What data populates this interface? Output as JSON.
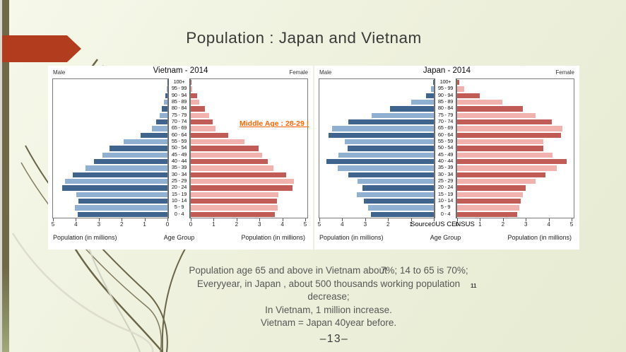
{
  "slide": {
    "title": "Population : Japan and Vietnam",
    "body": {
      "line1_part1": "Population age 65 and above in Vietnam about",
      "line1_part2": "7%; 14 to 65 is 70%;",
      "line2": "Everyyear, in Japan , about 500 thousands working population",
      "line2_superscript": "11",
      "line3": "decrease;",
      "line4": "In Vietnam, 1 million increase.",
      "line5": "Vietnam = Japan 40year before."
    },
    "page_number": "–13–"
  },
  "colors": {
    "male_dark": "#3f648e",
    "male_light": "#8fb0d1",
    "female_dark": "#c05b56",
    "female_light": "#f1b1ad",
    "accent_arrow": "#b23c1e",
    "annotation_orange": "#ff6600",
    "left_strip": "#6f6949"
  },
  "chart_data": [
    {
      "type": "bar",
      "subtype": "population_pyramid",
      "title": "Vietnam - 2014",
      "left_label": "Male",
      "right_label": "Female",
      "xlabel_left": "Population (in millions)",
      "xlabel_center": "Age Group",
      "xlabel_right": "Population (in millions)",
      "xlim": [
        0,
        5
      ],
      "x_ticks_male": [
        5,
        4,
        3,
        2,
        1,
        0
      ],
      "x_ticks_female": [
        0,
        1,
        2,
        3,
        4,
        5
      ],
      "categories_order": "top-to-bottom",
      "categories": [
        "100+",
        "95 - 99",
        "90 - 94",
        "85 - 89",
        "80 - 84",
        "75 - 79",
        "70 - 74",
        "65 - 69",
        "60 - 64",
        "55 - 59",
        "50 - 54",
        "45 - 49",
        "40 - 44",
        "35 - 39",
        "30 - 34",
        "25 - 29",
        "20 - 24",
        "15 - 19",
        "10 - 14",
        "5 - 9",
        "0 - 4"
      ],
      "series": [
        {
          "name": "Male",
          "values": [
            0.01,
            0.04,
            0.09,
            0.15,
            0.24,
            0.33,
            0.5,
            0.68,
            1.18,
            1.92,
            2.53,
            2.83,
            3.21,
            3.59,
            4.13,
            4.49,
            4.59,
            3.98,
            3.89,
            4.05,
            3.93
          ]
        },
        {
          "name": "Female",
          "values": [
            0.01,
            0.06,
            0.27,
            0.38,
            0.61,
            0.8,
            0.95,
            1.07,
            1.63,
            2.35,
            2.97,
            3.12,
            3.37,
            3.6,
            4.16,
            4.5,
            4.45,
            3.83,
            3.75,
            3.81,
            3.68
          ]
        }
      ],
      "annotation": "Middle Age : 28-29 !"
    },
    {
      "type": "bar",
      "subtype": "population_pyramid",
      "title": "Japan - 2014",
      "left_label": "Male",
      "right_label": "Female",
      "xlabel_left": "Population (in millions)",
      "xlabel_center": "Age Group",
      "xlabel_right": "Population (in millions)",
      "xlim": [
        0,
        5
      ],
      "x_ticks_male": [
        5,
        4,
        3,
        2,
        1,
        0
      ],
      "x_ticks_female": [
        0,
        1,
        2,
        3,
        4,
        5
      ],
      "categories_order": "top-to-bottom",
      "categories": [
        "100+",
        "95 - 99",
        "90 - 94",
        "85 - 89",
        "80 - 84",
        "75 - 79",
        "70 - 74",
        "65 - 69",
        "60 - 64",
        "55 - 59",
        "50 - 54",
        "45 - 49",
        "40 - 44",
        "35 - 39",
        "30 - 34",
        "25 - 29",
        "20 - 24",
        "15 - 19",
        "10 - 14",
        "5 - 9",
        "0 - 4"
      ],
      "series": [
        {
          "name": "Male",
          "values": [
            0.02,
            0.12,
            0.35,
            1.0,
            1.91,
            2.72,
            3.75,
            4.45,
            4.6,
            3.89,
            3.78,
            4.16,
            4.7,
            4.2,
            3.75,
            3.32,
            3.12,
            3.38,
            3.05,
            2.88,
            2.76
          ]
        },
        {
          "name": "Female",
          "values": [
            0.1,
            0.3,
            1.0,
            1.98,
            2.87,
            3.44,
            4.15,
            4.6,
            4.55,
            3.76,
            3.78,
            4.17,
            4.78,
            4.36,
            3.86,
            3.42,
            2.99,
            2.87,
            2.79,
            2.71,
            2.61
          ]
        }
      ],
      "source": "Source: US CENSUS"
    }
  ]
}
